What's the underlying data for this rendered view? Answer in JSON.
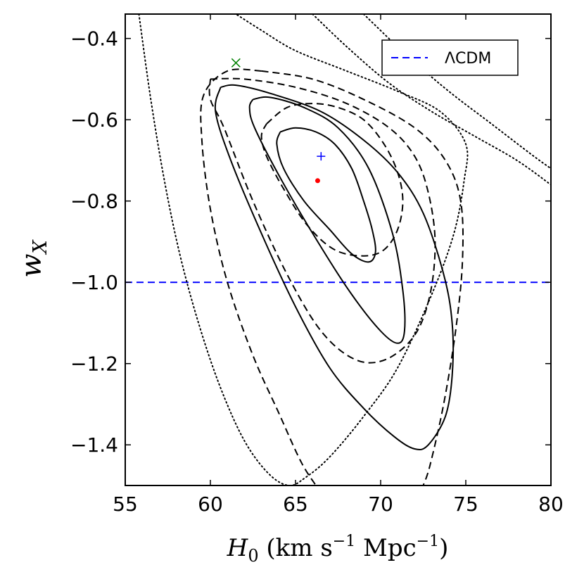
{
  "chart_data": {
    "type": "line",
    "title": "",
    "xlabel": "H₀ (km s⁻¹ Mpc⁻¹)",
    "ylabel": "w_X",
    "xlim": [
      55,
      80
    ],
    "ylim": [
      -1.5,
      -0.34
    ],
    "x_ticks": [
      55,
      60,
      65,
      70,
      75,
      80
    ],
    "x_tick_labels": [
      "55",
      "60",
      "65",
      "70",
      "75",
      "80"
    ],
    "y_ticks": [
      -1.4,
      -1.2,
      -1.0,
      -0.8,
      -0.6,
      -0.4
    ],
    "y_tick_labels": [
      "−1.4",
      "−1.2",
      "−1.0",
      "−0.8",
      "−0.6",
      "−0.4"
    ],
    "grid": false,
    "legend": {
      "position": "top-right",
      "entries": [
        {
          "label": "ΛCDM",
          "style": "dashed",
          "color": "#0000ff"
        }
      ]
    },
    "series": [
      {
        "name": "ΛCDM",
        "style": "dashed",
        "color": "#0000ff",
        "points": [
          [
            55,
            -1.0
          ],
          [
            80,
            -1.0
          ]
        ]
      },
      {
        "name": "solid contour 1σ",
        "style": "solid",
        "color": "#000000",
        "points": [
          [
            64.1,
            -0.63
          ],
          [
            65.0,
            -0.62
          ],
          [
            66.2,
            -0.63
          ],
          [
            67.3,
            -0.66
          ],
          [
            68.3,
            -0.72
          ],
          [
            69.0,
            -0.8
          ],
          [
            69.5,
            -0.87
          ],
          [
            69.7,
            -0.925
          ],
          [
            69.3,
            -0.95
          ],
          [
            68.3,
            -0.93
          ],
          [
            67.0,
            -0.87
          ],
          [
            65.5,
            -0.8
          ],
          [
            64.3,
            -0.72
          ],
          [
            63.9,
            -0.66
          ],
          [
            64.1,
            -0.63
          ]
        ]
      },
      {
        "name": "solid contour 2σ",
        "style": "solid",
        "color": "#000000",
        "points": [
          [
            62.5,
            -0.55
          ],
          [
            63.5,
            -0.545
          ],
          [
            65.5,
            -0.57
          ],
          [
            67.5,
            -0.62
          ],
          [
            69.3,
            -0.72
          ],
          [
            70.7,
            -0.88
          ],
          [
            71.3,
            -1.02
          ],
          [
            71.4,
            -1.12
          ],
          [
            71.0,
            -1.15
          ],
          [
            70.0,
            -1.12
          ],
          [
            68.3,
            -1.03
          ],
          [
            66.3,
            -0.9
          ],
          [
            64.2,
            -0.75
          ],
          [
            62.6,
            -0.62
          ],
          [
            62.3,
            -0.57
          ],
          [
            62.5,
            -0.55
          ]
        ]
      },
      {
        "name": "solid contour 3σ",
        "style": "solid",
        "color": "#000000",
        "points": [
          [
            60.6,
            -0.52
          ],
          [
            61.5,
            -0.515
          ],
          [
            63.5,
            -0.535
          ],
          [
            66.5,
            -0.58
          ],
          [
            69.0,
            -0.65
          ],
          [
            71.0,
            -0.73
          ],
          [
            72.5,
            -0.83
          ],
          [
            73.7,
            -0.98
          ],
          [
            74.2,
            -1.1
          ],
          [
            74.2,
            -1.23
          ],
          [
            73.8,
            -1.33
          ],
          [
            72.8,
            -1.4
          ],
          [
            72.0,
            -1.41
          ],
          [
            70.8,
            -1.38
          ],
          [
            69.0,
            -1.31
          ],
          [
            67.0,
            -1.21
          ],
          [
            65.0,
            -1.06
          ],
          [
            63.0,
            -0.88
          ],
          [
            61.2,
            -0.7
          ],
          [
            60.3,
            -0.58
          ],
          [
            60.6,
            -0.52
          ]
        ]
      },
      {
        "name": "dashed contour 1σ",
        "style": "dashed",
        "color": "#000000",
        "points": [
          [
            63.3,
            -0.61
          ],
          [
            64.5,
            -0.57
          ],
          [
            66.0,
            -0.56
          ],
          [
            67.5,
            -0.57
          ],
          [
            69.0,
            -0.6
          ],
          [
            70.2,
            -0.66
          ],
          [
            71.0,
            -0.73
          ],
          [
            71.3,
            -0.8
          ],
          [
            71.0,
            -0.87
          ],
          [
            70.2,
            -0.92
          ],
          [
            69.0,
            -0.935
          ],
          [
            67.3,
            -0.92
          ],
          [
            65.7,
            -0.86
          ],
          [
            64.3,
            -0.77
          ],
          [
            63.3,
            -0.69
          ],
          [
            63.0,
            -0.64
          ],
          [
            63.3,
            -0.61
          ]
        ]
      },
      {
        "name": "dashed contour 2σ",
        "style": "dashed",
        "color": "#000000",
        "points": [
          [
            60.0,
            -0.5
          ],
          [
            62.0,
            -0.5
          ],
          [
            65.0,
            -0.52
          ],
          [
            68.0,
            -0.56
          ],
          [
            70.5,
            -0.62
          ],
          [
            72.0,
            -0.69
          ],
          [
            72.8,
            -0.78
          ],
          [
            73.2,
            -0.9
          ],
          [
            72.9,
            -1.03
          ],
          [
            72.0,
            -1.13
          ],
          [
            70.3,
            -1.19
          ],
          [
            68.5,
            -1.19
          ],
          [
            66.5,
            -1.12
          ],
          [
            64.5,
            -0.98
          ],
          [
            62.5,
            -0.8
          ],
          [
            60.8,
            -0.62
          ],
          [
            60.0,
            -0.55
          ],
          [
            60.0,
            -0.5
          ]
        ]
      },
      {
        "name": "dashed contour 3σ left",
        "style": "dashed",
        "color": "#000000",
        "points": [
          [
            63.0,
            -0.48
          ],
          [
            61.0,
            -0.48
          ],
          [
            59.6,
            -0.54
          ],
          [
            59.5,
            -0.65
          ],
          [
            60.0,
            -0.82
          ],
          [
            61.0,
            -1.0
          ],
          [
            62.5,
            -1.18
          ],
          [
            64.0,
            -1.32
          ],
          [
            65.3,
            -1.44
          ],
          [
            66.2,
            -1.5
          ]
        ]
      },
      {
        "name": "dashed contour 3σ right",
        "style": "dashed",
        "color": "#000000",
        "points": [
          [
            63.0,
            -0.48
          ],
          [
            66.0,
            -0.5
          ],
          [
            69.0,
            -0.55
          ],
          [
            72.0,
            -0.62
          ],
          [
            73.8,
            -0.7
          ],
          [
            74.7,
            -0.8
          ],
          [
            74.8,
            -0.95
          ],
          [
            74.4,
            -1.12
          ],
          [
            73.7,
            -1.3
          ],
          [
            72.9,
            -1.45
          ],
          [
            72.5,
            -1.5
          ]
        ]
      },
      {
        "name": "dotted contour inner",
        "style": "dotted",
        "color": "#000000",
        "points": [
          [
            55.8,
            -0.34
          ],
          [
            56.5,
            -0.55
          ],
          [
            57.3,
            -0.75
          ],
          [
            58.2,
            -0.93
          ],
          [
            59.3,
            -1.1
          ],
          [
            60.6,
            -1.26
          ],
          [
            62.0,
            -1.39
          ],
          [
            63.4,
            -1.47
          ],
          [
            64.6,
            -1.5
          ],
          [
            65.6,
            -1.48
          ],
          [
            67.0,
            -1.43
          ],
          [
            69.0,
            -1.33
          ],
          [
            71.0,
            -1.21
          ],
          [
            73.0,
            -1.03
          ],
          [
            74.3,
            -0.88
          ],
          [
            74.9,
            -0.75
          ],
          [
            75.0,
            -0.66
          ],
          [
            73.5,
            -0.58
          ],
          [
            71.0,
            -0.53
          ],
          [
            68.0,
            -0.48
          ],
          [
            65.0,
            -0.43
          ],
          [
            63.0,
            -0.38
          ],
          [
            61.5,
            -0.34
          ]
        ]
      },
      {
        "name": "dotted contour middle",
        "style": "dotted",
        "color": "#000000",
        "points": [
          [
            66.0,
            -0.34
          ],
          [
            68.0,
            -0.42
          ],
          [
            70.5,
            -0.51
          ],
          [
            73.0,
            -0.58
          ],
          [
            75.5,
            -0.64
          ],
          [
            78.0,
            -0.7
          ],
          [
            80.0,
            -0.76
          ]
        ]
      },
      {
        "name": "dotted contour outer",
        "style": "dotted",
        "color": "#000000",
        "points": [
          [
            69.0,
            -0.34
          ],
          [
            71.5,
            -0.44
          ],
          [
            74.0,
            -0.53
          ],
          [
            76.5,
            -0.61
          ],
          [
            79.0,
            -0.69
          ],
          [
            80.0,
            -0.72
          ]
        ]
      }
    ],
    "markers": [
      {
        "name": "best fit",
        "symbol": "dot",
        "color": "#ff0000",
        "x": 66.3,
        "y": -0.75
      },
      {
        "name": "plus point",
        "symbol": "plus",
        "color": "#0000ff",
        "x": 66.5,
        "y": -0.69
      },
      {
        "name": "cross point",
        "symbol": "x",
        "color": "#008000",
        "x": 61.5,
        "y": -0.46
      }
    ]
  }
}
